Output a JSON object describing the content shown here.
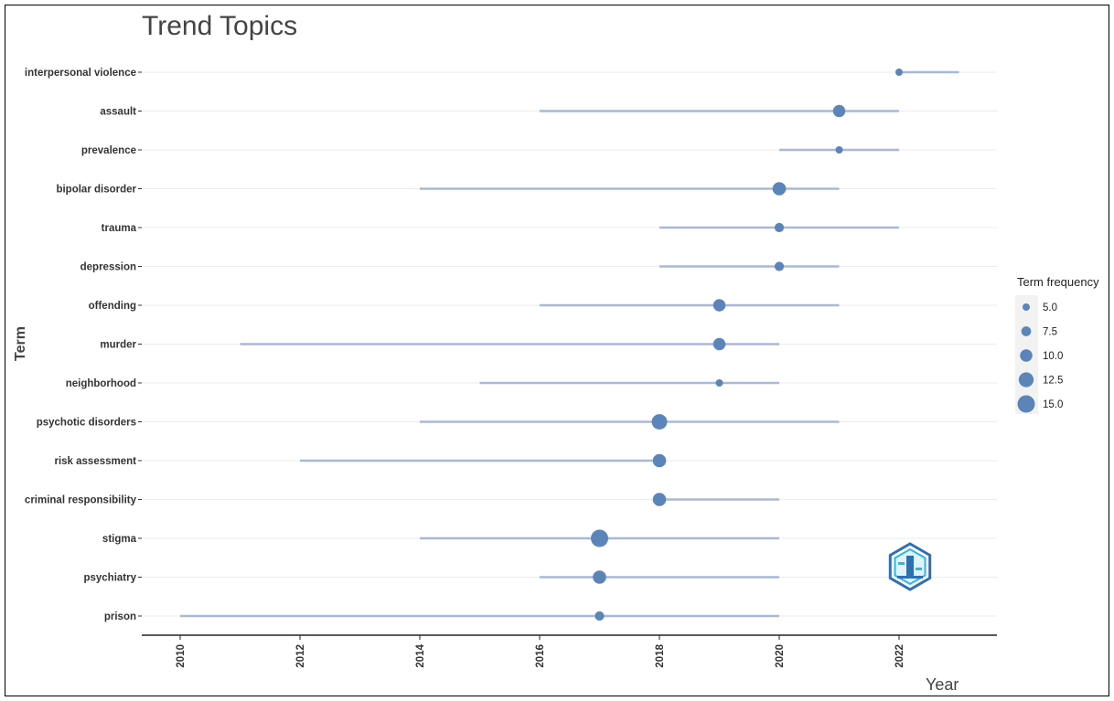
{
  "chart_data": {
    "type": "scatter",
    "title": "Trend Topics",
    "xlabel": "Year",
    "ylabel": "Term",
    "xlim": [
      2009.5,
      2023.6
    ],
    "x_ticks": [
      2010,
      2012,
      2014,
      2016,
      2018,
      2020,
      2022
    ],
    "grid": "horizontal",
    "legend_position": "right",
    "legend": {
      "title": "Term frequency",
      "values": [
        5.0,
        7.5,
        10.0,
        12.5,
        15.0
      ],
      "labels": [
        "5.0",
        "7.5",
        "10.0",
        "12.5",
        "15.0"
      ]
    },
    "colors": {
      "point": "#5b84b8",
      "segment": "#a9b8d6",
      "grid": "#ebebeb"
    },
    "terms": [
      {
        "term": "interpersonal violence",
        "start": 2022,
        "median": 2022,
        "end": 2023,
        "freq": 5
      },
      {
        "term": "assault",
        "start": 2016,
        "median": 2021,
        "end": 2022,
        "freq": 10
      },
      {
        "term": "prevalence",
        "start": 2020,
        "median": 2021,
        "end": 2022,
        "freq": 5
      },
      {
        "term": "bipolar disorder",
        "start": 2014,
        "median": 2020,
        "end": 2021,
        "freq": 11
      },
      {
        "term": "trauma",
        "start": 2018,
        "median": 2020,
        "end": 2022,
        "freq": 7
      },
      {
        "term": "depression",
        "start": 2018,
        "median": 2020,
        "end": 2021,
        "freq": 7
      },
      {
        "term": "offending",
        "start": 2016,
        "median": 2019,
        "end": 2021,
        "freq": 10
      },
      {
        "term": "murder",
        "start": 2011,
        "median": 2019,
        "end": 2020,
        "freq": 10
      },
      {
        "term": "neighborhood",
        "start": 2015,
        "median": 2019,
        "end": 2020,
        "freq": 5
      },
      {
        "term": "psychotic disorders",
        "start": 2014,
        "median": 2018,
        "end": 2021,
        "freq": 13
      },
      {
        "term": "risk assessment",
        "start": 2012,
        "median": 2018,
        "end": 2018,
        "freq": 11
      },
      {
        "term": "criminal responsibility",
        "start": 2018,
        "median": 2018,
        "end": 2020,
        "freq": 11
      },
      {
        "term": "stigma",
        "start": 2014,
        "median": 2017,
        "end": 2020,
        "freq": 15
      },
      {
        "term": "psychiatry",
        "start": 2016,
        "median": 2017,
        "end": 2020,
        "freq": 11
      },
      {
        "term": "prison",
        "start": 2010,
        "median": 2017,
        "end": 2020,
        "freq": 7
      }
    ]
  },
  "logo": {
    "name": "bibliometrix-logo-icon"
  }
}
